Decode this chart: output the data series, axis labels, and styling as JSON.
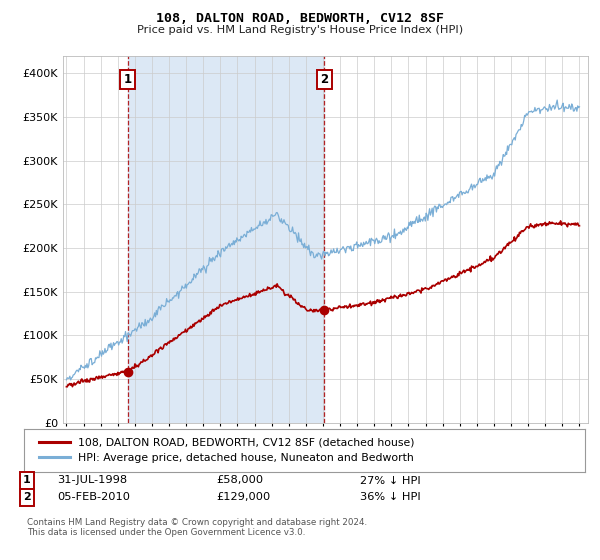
{
  "title": "108, DALTON ROAD, BEDWORTH, CV12 8SF",
  "subtitle": "Price paid vs. HM Land Registry's House Price Index (HPI)",
  "hpi_label": "HPI: Average price, detached house, Nuneaton and Bedworth",
  "property_label": "108, DALTON ROAD, BEDWORTH, CV12 8SF (detached house)",
  "transaction1_date": "31-JUL-1998",
  "transaction1_price": "£58,000",
  "transaction1_hpi": "27% ↓ HPI",
  "transaction1_year": 1998.58,
  "transaction1_value": 58000,
  "transaction2_date": "05-FEB-2010",
  "transaction2_price": "£129,000",
  "transaction2_hpi": "36% ↓ HPI",
  "transaction2_year": 2010.09,
  "transaction2_value": 129000,
  "property_color": "#aa0000",
  "hpi_color": "#7aaed6",
  "shade_color": "#dce8f5",
  "background_color": "#ffffff",
  "plot_bg_color": "#ffffff",
  "grid_color": "#cccccc",
  "footer_text": "Contains HM Land Registry data © Crown copyright and database right 2024.\nThis data is licensed under the Open Government Licence v3.0.",
  "ylim": [
    0,
    420000
  ],
  "yticks": [
    0,
    50000,
    100000,
    150000,
    200000,
    250000,
    300000,
    350000,
    400000
  ],
  "ytick_labels": [
    "£0",
    "£50K",
    "£100K",
    "£150K",
    "£200K",
    "£250K",
    "£300K",
    "£350K",
    "£400K"
  ],
  "xlim": [
    1994.8,
    2025.5
  ],
  "xticks": [
    1995,
    1996,
    1997,
    1998,
    1999,
    2000,
    2001,
    2002,
    2003,
    2004,
    2005,
    2006,
    2007,
    2008,
    2009,
    2010,
    2011,
    2012,
    2013,
    2014,
    2015,
    2016,
    2017,
    2018,
    2019,
    2020,
    2021,
    2022,
    2023,
    2024,
    2025
  ]
}
